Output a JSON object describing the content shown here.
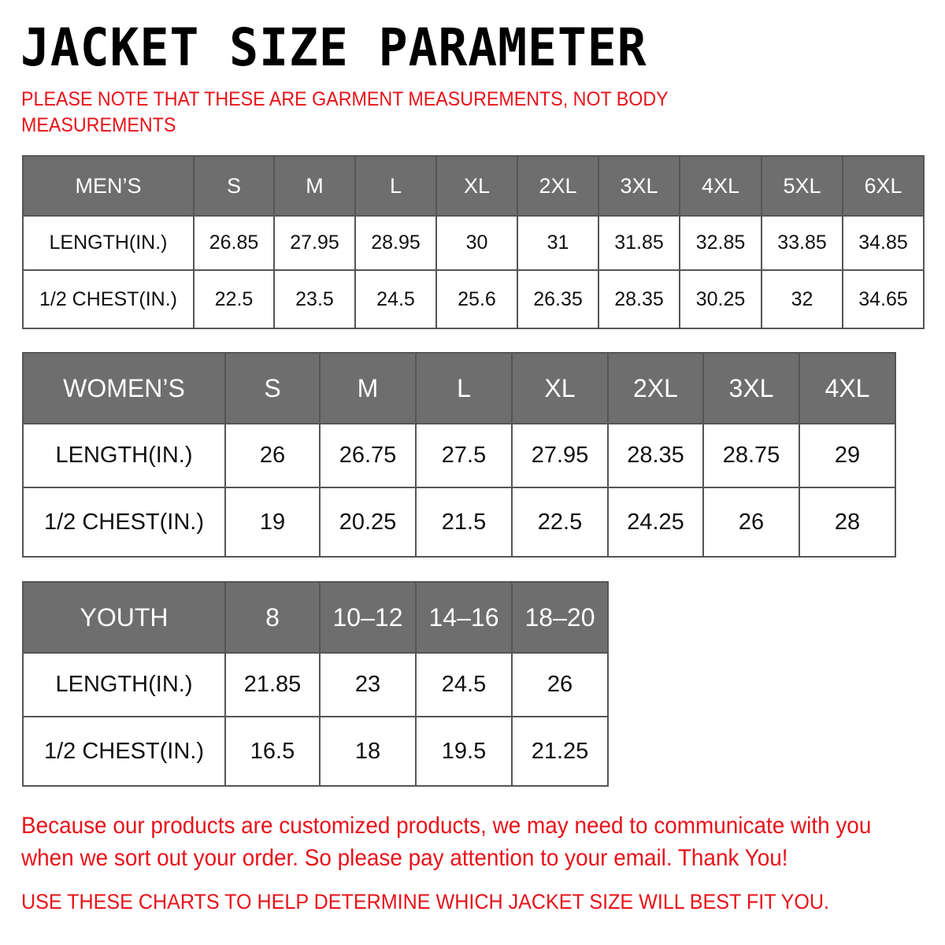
{
  "title": "JACKET SIZE PARAMETER",
  "note": "PLEASE NOTE THAT THESE ARE GARMENT MEASUREMENTS, NOT BODY MEASUREMENTS",
  "tables": {
    "men": {
      "header": [
        "MEN’S",
        "S",
        "M",
        "L",
        "XL",
        "2XL",
        "3XL",
        "4XL",
        "5XL",
        "6XL"
      ],
      "rows": [
        [
          "LENGTH(IN.)",
          "26.85",
          "27.95",
          "28.95",
          "30",
          "31",
          "31.85",
          "32.85",
          "33.85",
          "34.85"
        ],
        [
          "1/2 CHEST(IN.)",
          "22.5",
          "23.5",
          "24.5",
          "25.6",
          "26.35",
          "28.35",
          "30.25",
          "32",
          "34.65"
        ]
      ]
    },
    "women": {
      "header": [
        "WOMEN’S",
        "S",
        "M",
        "L",
        "XL",
        "2XL",
        "3XL",
        "4XL"
      ],
      "rows": [
        [
          "LENGTH(IN.)",
          "26",
          "26.75",
          "27.5",
          "27.95",
          "28.35",
          "28.75",
          "29"
        ],
        [
          "1/2 CHEST(IN.)",
          "19",
          "20.25",
          "21.5",
          "22.5",
          "24.25",
          "26",
          "28"
        ]
      ]
    },
    "youth": {
      "header": [
        "YOUTH",
        "8",
        "10–12",
        "14–16",
        "18–20"
      ],
      "rows": [
        [
          "LENGTH(IN.)",
          "21.85",
          "23",
          "24.5",
          "26"
        ],
        [
          "1/2 CHEST(IN.)",
          "16.5",
          "18",
          "19.5",
          "21.25"
        ]
      ]
    }
  },
  "footer": {
    "message": "Because our products are customized products, we may need to communicate with you when we sort out your order. So please pay attention to your email. Thank You!",
    "advice": "USE THESE CHARTS TO HELP DETERMINE WHICH JACKET SIZE WILL BEST FIT YOU."
  },
  "colors": {
    "header_bg": "#6e6e6e",
    "accent_red": "#e8121a"
  }
}
